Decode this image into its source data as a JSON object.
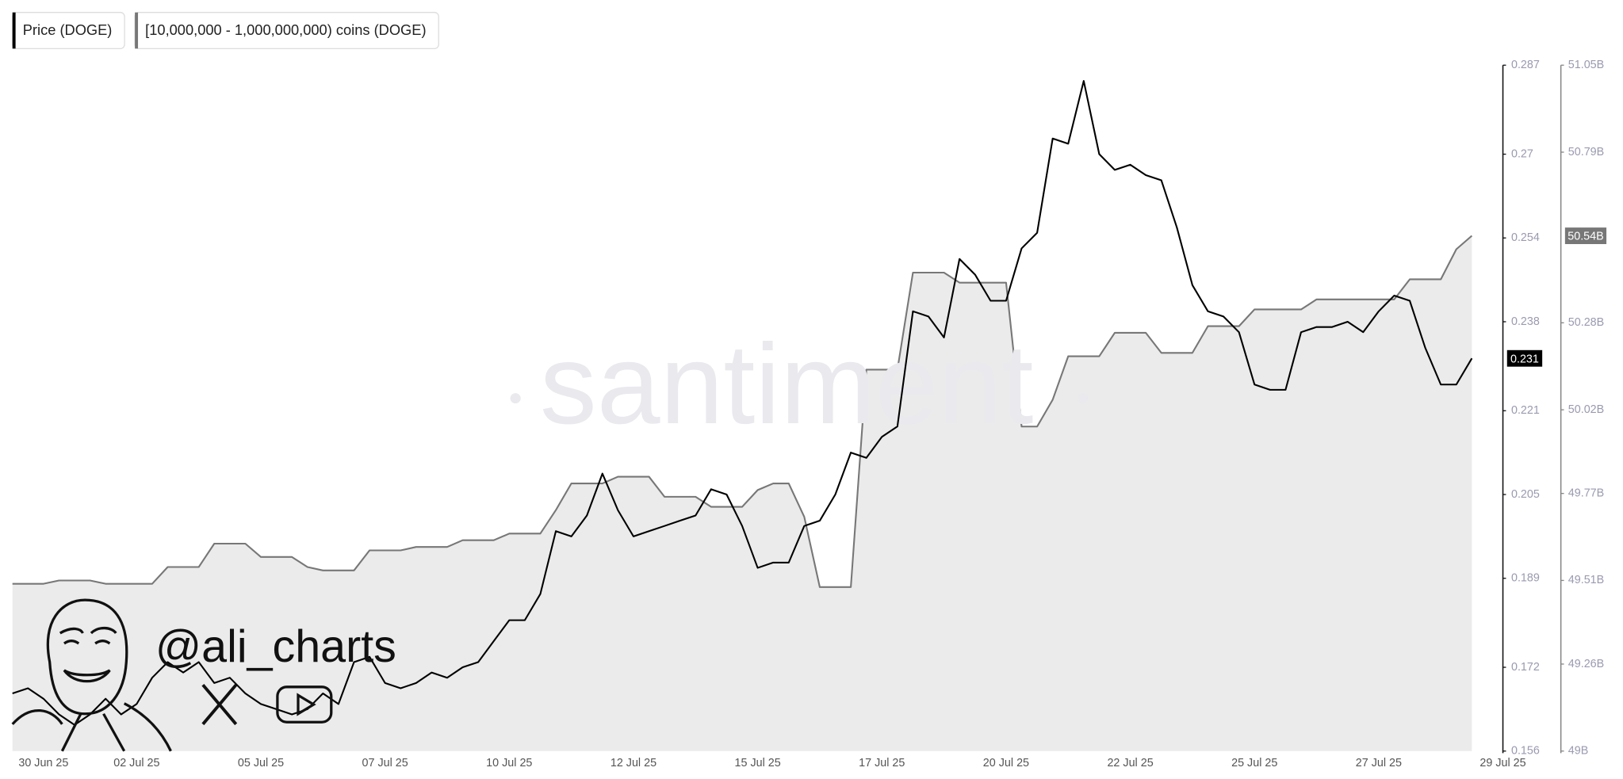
{
  "chart_data": {
    "type": "line",
    "watermark": "santiment",
    "annotation": "@ali_charts",
    "categories": [
      null,
      null,
      "30 Jun 25",
      null,
      null,
      null,
      null,
      null,
      "02 Jul 25",
      null,
      null,
      null,
      null,
      null,
      null,
      null,
      "05 Jul 25",
      null,
      null,
      null,
      null,
      null,
      null,
      null,
      "07 Jul 25",
      null,
      null,
      null,
      null,
      null,
      null,
      null,
      "10 Jul 25",
      null,
      null,
      null,
      null,
      null,
      null,
      null,
      "12 Jul 25",
      null,
      null,
      null,
      null,
      null,
      null,
      null,
      "15 Jul 25",
      null,
      null,
      null,
      null,
      null,
      null,
      null,
      "17 Jul 25",
      null,
      null,
      null,
      null,
      null,
      null,
      null,
      "20 Jul 25",
      null,
      null,
      null,
      null,
      null,
      null,
      null,
      "22 Jul 25",
      null,
      null,
      null,
      null,
      null,
      null,
      null,
      "25 Jul 25",
      null,
      null,
      null,
      null,
      null,
      null,
      null,
      "27 Jul 25",
      null,
      null,
      null,
      null,
      null,
      null,
      null,
      "29 Jul 25"
    ],
    "series": [
      {
        "name": "Price (DOGE)",
        "color": "#000000",
        "axis": "y",
        "values": [
          0.167,
          0.168,
          0.166,
          0.163,
          0.161,
          0.163,
          0.166,
          0.163,
          0.165,
          0.17,
          0.173,
          0.171,
          0.173,
          0.169,
          0.17,
          0.167,
          0.165,
          0.164,
          0.163,
          0.164,
          0.167,
          0.165,
          0.173,
          0.174,
          0.169,
          0.168,
          0.169,
          0.171,
          0.17,
          0.172,
          0.173,
          0.177,
          0.181,
          0.181,
          0.186,
          0.198,
          0.197,
          0.201,
          0.209,
          0.202,
          0.197,
          0.198,
          0.199,
          0.2,
          0.201,
          0.206,
          0.205,
          0.199,
          0.191,
          0.192,
          0.192,
          0.199,
          0.2,
          0.205,
          0.213,
          0.212,
          0.216,
          0.218,
          0.24,
          0.239,
          0.235,
          0.25,
          0.247,
          0.242,
          0.242,
          0.252,
          0.255,
          0.273,
          0.272,
          0.284,
          0.27,
          0.267,
          0.268,
          0.266,
          0.265,
          0.256,
          0.245,
          0.24,
          0.239,
          0.236,
          0.226,
          0.225,
          0.225,
          0.236,
          0.237,
          0.237,
          0.238,
          0.236,
          0.24,
          0.243,
          0.242,
          0.233,
          0.226,
          0.226,
          0.231,
          null,
          null
        ]
      },
      {
        "name": "[10,000,000 - 1,000,000,000) coins (DOGE)",
        "color": "#777777",
        "fill": "#ebebeb",
        "axis": "y2",
        "values": [
          49.5,
          49.5,
          49.5,
          49.51,
          49.51,
          49.51,
          49.5,
          49.5,
          49.5,
          49.5,
          49.55,
          49.55,
          49.55,
          49.62,
          49.62,
          49.62,
          49.58,
          49.58,
          49.58,
          49.55,
          49.54,
          49.54,
          49.54,
          49.6,
          49.6,
          49.6,
          49.61,
          49.61,
          49.61,
          49.63,
          49.63,
          49.63,
          49.65,
          49.65,
          49.65,
          49.72,
          49.8,
          49.8,
          49.8,
          49.82,
          49.82,
          49.82,
          49.76,
          49.76,
          49.76,
          49.73,
          49.73,
          49.73,
          49.78,
          49.8,
          49.8,
          49.7,
          49.49,
          49.49,
          49.49,
          50.14,
          50.14,
          50.14,
          50.43,
          50.43,
          50.43,
          50.4,
          50.4,
          50.4,
          50.4,
          49.97,
          49.97,
          50.05,
          50.18,
          50.18,
          50.18,
          50.25,
          50.25,
          50.25,
          50.19,
          50.19,
          50.19,
          50.27,
          50.27,
          50.27,
          50.32,
          50.32,
          50.32,
          50.32,
          50.35,
          50.35,
          50.35,
          50.35,
          50.35,
          50.35,
          50.41,
          50.41,
          50.41,
          50.5,
          50.54,
          null,
          null
        ],
        "value_labels": [
          null,
          null,
          null,
          null,
          null,
          null,
          null,
          null,
          null,
          null,
          null,
          null,
          null,
          null,
          null,
          null,
          null,
          null,
          null,
          null,
          null,
          null,
          null,
          null,
          null,
          null,
          null,
          null,
          null,
          null,
          null,
          null,
          null,
          null,
          null,
          null,
          null,
          null,
          null,
          null,
          null,
          null,
          null,
          null,
          null,
          null,
          null,
          null,
          null,
          null,
          null,
          null,
          null,
          null,
          null,
          null,
          null,
          null,
          null,
          null,
          null,
          null,
          null,
          null,
          null,
          null,
          null,
          null,
          null,
          null,
          null,
          null,
          null,
          null,
          null,
          null,
          null,
          null,
          null,
          null,
          null,
          null,
          null,
          null,
          null,
          null,
          null,
          null,
          null,
          null,
          null,
          null,
          null,
          null,
          "50.54B",
          null,
          null
        ]
      }
    ],
    "ylim": [
      0.156,
      0.287
    ],
    "yticks": [
      0.156,
      0.172,
      0.189,
      0.205,
      0.221,
      0.238,
      0.254,
      0.27,
      0.287
    ],
    "y2lim": [
      49,
      51.05
    ],
    "y2ticks": [
      {
        "value": 49,
        "label": "49B"
      },
      {
        "value": 49.26,
        "label": "49.26B"
      },
      {
        "value": 49.51,
        "label": "49.51B"
      },
      {
        "value": 49.77,
        "label": "49.77B"
      },
      {
        "value": 50.02,
        "label": "50.02B"
      },
      {
        "value": 50.28,
        "label": "50.28B"
      },
      {
        "value": 50.79,
        "label": "50.79B"
      },
      {
        "value": 51.05,
        "label": "51.05B"
      }
    ],
    "legend": "top-left"
  }
}
